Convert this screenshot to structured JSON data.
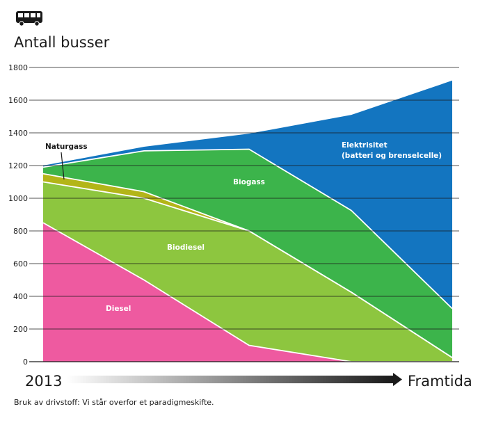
{
  "chart_data": {
    "type": "area",
    "stacked": true,
    "ylabel": "Antall busser",
    "ylim": [
      0,
      1800
    ],
    "yticks": [
      0,
      200,
      400,
      600,
      800,
      1000,
      1200,
      1400,
      1600,
      1800
    ],
    "grid": true,
    "x": [
      0,
      1,
      2,
      3,
      4
    ],
    "x_start_label": "2013",
    "x_end_label": "Framtida",
    "series": [
      {
        "name": "Diesel",
        "color": "#ee5aa0",
        "values": [
          850,
          500,
          100,
          0,
          0
        ]
      },
      {
        "name": "Biodiesel",
        "color": "#8dc63f",
        "values": [
          250,
          500,
          700,
          425,
          25
        ]
      },
      {
        "name": "Naturgass",
        "color": "#b3b518",
        "values": [
          50,
          40,
          0,
          0,
          0
        ]
      },
      {
        "name": "Biogass",
        "color": "#3cb44b",
        "values": [
          40,
          250,
          500,
          500,
          300
        ]
      },
      {
        "name": "Elektrisitet",
        "name_line2": "(batteri og brenselcelle)",
        "color": "#1375c0",
        "values": [
          10,
          25,
          95,
          585,
          1395
        ]
      }
    ]
  },
  "icon": "bus-icon",
  "caption": "Bruk av drivstoff: Vi står overfor et paradigmeskifte."
}
